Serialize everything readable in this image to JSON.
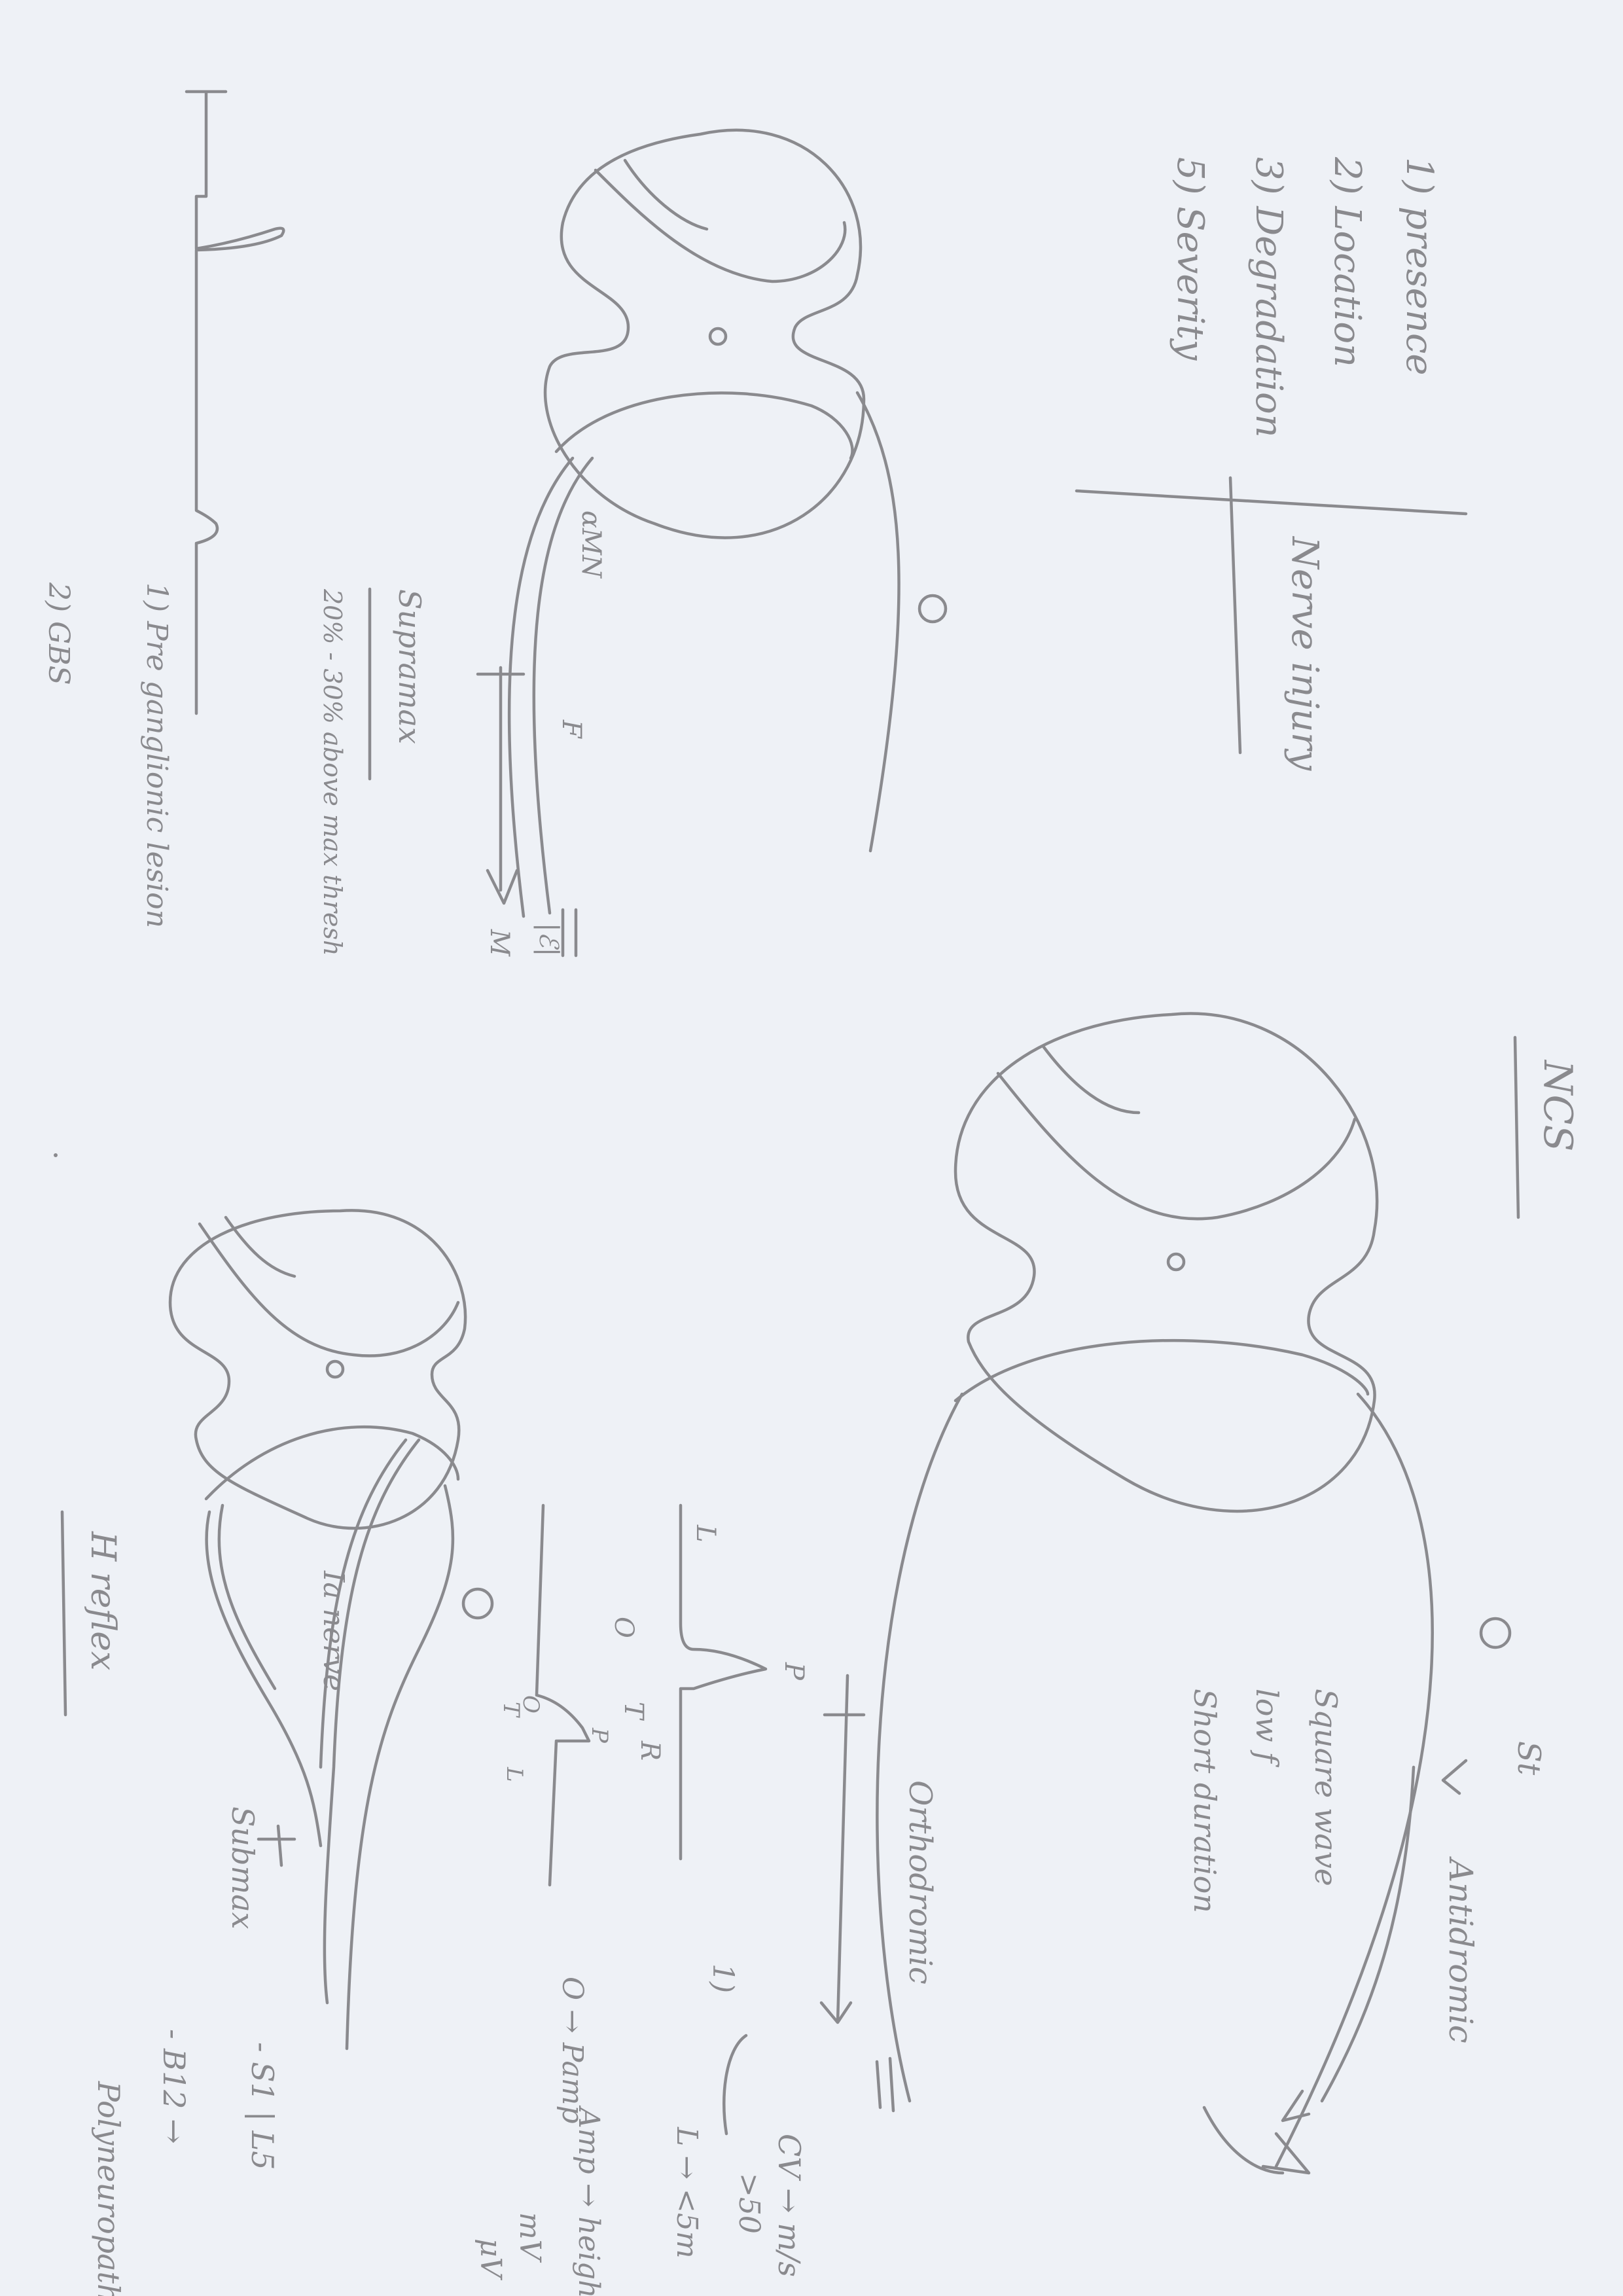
{
  "sheet": {
    "title_ncs": "NCS",
    "title_h_reflex": "H reflex"
  },
  "top_list": {
    "items": [
      "1) presence",
      "2) Location",
      "3) Degradation",
      "5) Severity"
    ],
    "side_note": "Nerve injury"
  },
  "f_wave_diagram": {
    "labels": [
      "αMN",
      "F",
      "M"
    ],
    "heading": "Supramax",
    "subtext": "20% - 30% above max thresh",
    "muscle_label": "|ℰ|"
  },
  "left_notes": {
    "items": [
      "1) Pre ganglionic lesion",
      "2) GBS"
    ]
  },
  "ncs_diagram": {
    "stim_label": "St",
    "antidromic": "Antidromic",
    "orthodromic": "Orthodromic",
    "stim_desc": [
      "Square wave",
      "low f",
      "Short duration"
    ]
  },
  "waveform": {
    "labels": [
      "L",
      "O",
      "P",
      "T",
      "R",
      "P",
      "T",
      "O",
      "L"
    ],
    "notes": [
      "1)",
      "CV → m/s",
      ">50",
      "L → <5m",
      "Amp → height",
      "mV",
      "μV",
      "O → Pamp"
    ]
  },
  "h_reflex": {
    "nerve_label": "Ia nerve",
    "submax": "Submax",
    "notes": [
      "- S1 | L5",
      "- B12 →",
      "Polyneuropathy"
    ]
  }
}
